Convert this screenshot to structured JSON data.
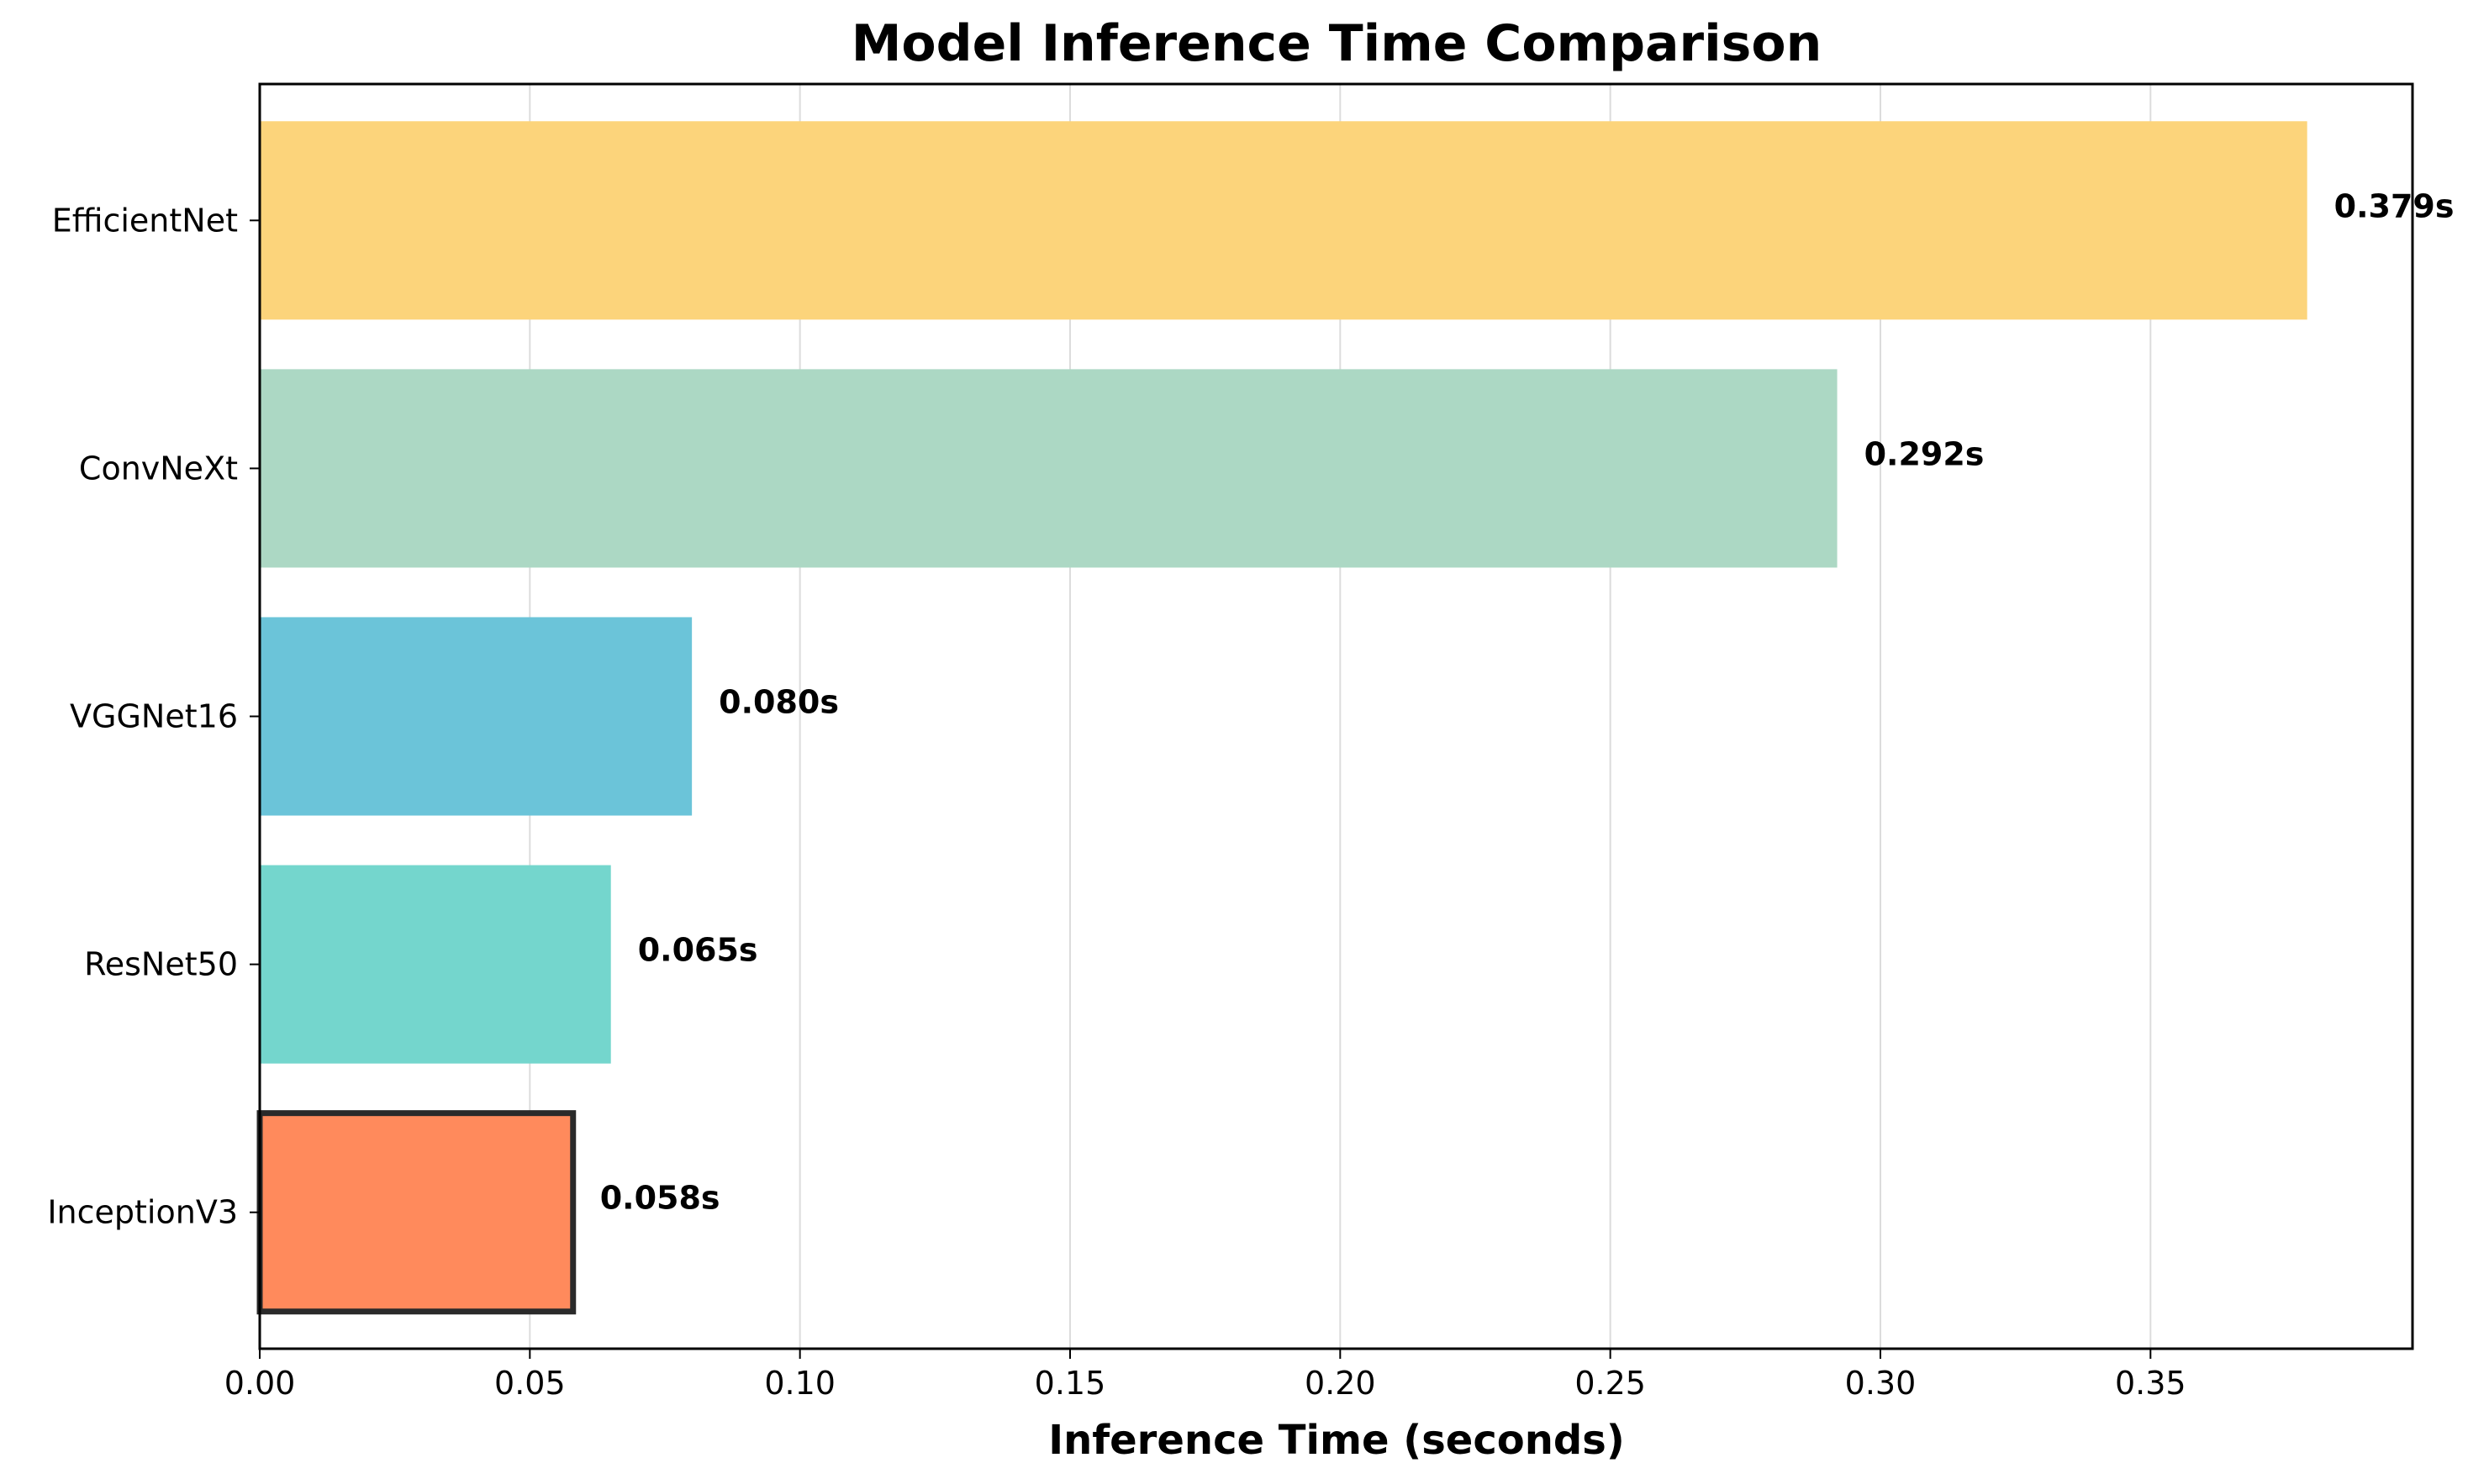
{
  "chart_data": {
    "type": "bar",
    "orientation": "horizontal",
    "title": "Model Inference Time Comparison",
    "xlabel": "Inference Time (seconds)",
    "ylabel": "",
    "xlim": [
      0,
      0.3985
    ],
    "xticks": [
      "0.00",
      "0.05",
      "0.10",
      "0.15",
      "0.20",
      "0.25",
      "0.30",
      "0.35"
    ],
    "grid": "vertical",
    "categories": [
      "InceptionV3",
      "ResNet50",
      "VGGNet16",
      "ConvNeXt",
      "EfficientNet"
    ],
    "values": [
      0.058,
      0.065,
      0.08,
      0.292,
      0.379
    ],
    "value_labels": [
      "0.058s",
      "0.065s",
      "0.080s",
      "0.292s",
      "0.379s"
    ],
    "colors": [
      "#ff8a5c",
      "#74d6cd",
      "#6bc4d9",
      "#acd8c4",
      "#fcd47b"
    ],
    "highlighted": "InceptionV3",
    "highlight_edge_color": "#2a2a2a"
  }
}
